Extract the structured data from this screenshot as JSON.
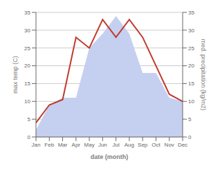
{
  "chart_data": {
    "type": "line",
    "categories": [
      "Jan",
      "Feb",
      "Mar",
      "Apr",
      "May",
      "Jun",
      "Jul",
      "Aug",
      "Sep",
      "Oct",
      "Nov",
      "Dec"
    ],
    "xlabel": "date (month)",
    "ylabel": "max temp (C)",
    "y2label": "med. precipitation (kg/m2)",
    "ylim": [
      0,
      35
    ],
    "yticks": [
      0,
      5,
      10,
      15,
      20,
      25,
      30,
      35
    ],
    "y2lim": [
      0,
      35
    ],
    "y2ticks": [
      0,
      5,
      10,
      15,
      20,
      25,
      30,
      35
    ],
    "grid": true,
    "series": [
      {
        "type": "area",
        "color": "#c5cff0",
        "axis": "y2",
        "values": [
          2,
          9,
          11,
          11,
          25,
          29,
          34,
          29,
          18,
          18,
          11,
          10
        ]
      },
      {
        "type": "line",
        "color": "#c0392b",
        "values": [
          4,
          9,
          10.5,
          28,
          25,
          33,
          28,
          33,
          28,
          20,
          12,
          10
        ]
      }
    ]
  }
}
